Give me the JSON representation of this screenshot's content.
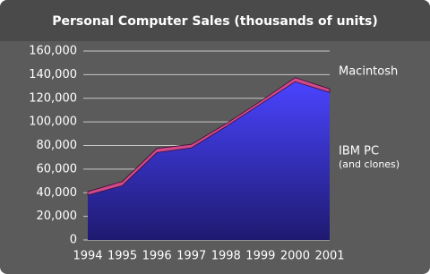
{
  "chart_data": {
    "type": "stacked-area",
    "title": "Personal Computer Sales (thousands of units)",
    "categories": [
      "1994",
      "1995",
      "1996",
      "1997",
      "1998",
      "1999",
      "2000",
      "2001"
    ],
    "series": [
      {
        "name": "IBM PC",
        "annotation": "(and clones)",
        "color": "#3b35e6",
        "values": [
          38000,
          46000,
          74000,
          78000,
          96000,
          115000,
          134000,
          125000
        ]
      },
      {
        "name": "Macintosh",
        "color": "#d0488a",
        "values": [
          3000,
          3500,
          3500,
          3000,
          2500,
          2500,
          3500,
          3000
        ]
      }
    ],
    "ylim": [
      0,
      160000
    ],
    "yticks": [
      0,
      {
        "value": 20000,
        "label": "20,000"
      },
      {
        "value": 40000,
        "label": "40,000"
      },
      {
        "value": 60000,
        "label": "60,000"
      },
      {
        "value": 80000,
        "label": "80,000"
      },
      {
        "value": 100000,
        "label": "100,000"
      },
      {
        "value": 120000,
        "label": "120,000"
      },
      {
        "value": 140000,
        "label": "140,000"
      },
      {
        "value": 160000,
        "label": "160,000"
      }
    ],
    "grid": true
  }
}
